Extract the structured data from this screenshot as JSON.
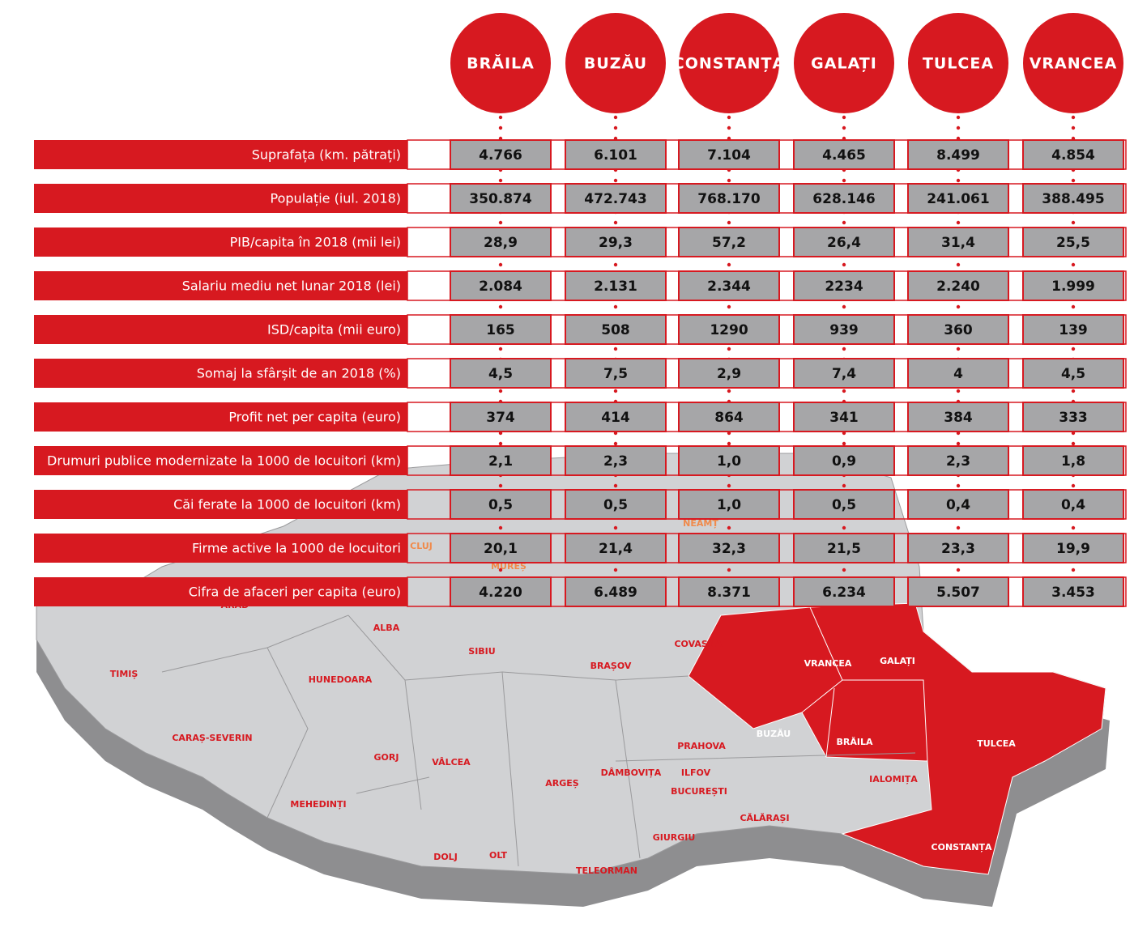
{
  "table": {
    "columns": [
      "BRĂILA",
      "BUZĂU",
      "CONSTANȚA",
      "GALAȚI",
      "TULCEA",
      "VRANCEA"
    ],
    "rows": [
      {
        "label": "Suprafața (km. pătrați)",
        "values": [
          "4.766",
          "6.101",
          "7.104",
          "4.465",
          "8.499",
          "4.854"
        ]
      },
      {
        "label": "Populație (iul. 2018)",
        "values": [
          "350.874",
          "472.743",
          "768.170",
          "628.146",
          "241.061",
          "388.495"
        ]
      },
      {
        "label": "PIB/capita în 2018 (mii lei)",
        "values": [
          "28,9",
          "29,3",
          "57,2",
          "26,4",
          "31,4",
          "25,5"
        ]
      },
      {
        "label": "Salariu mediu net lunar 2018 (lei)",
        "values": [
          "2.084",
          "2.131",
          "2.344",
          "2234",
          "2.240",
          "1.999"
        ]
      },
      {
        "label": "ISD/capita (mii euro)",
        "values": [
          "165",
          "508",
          "1290",
          "939",
          "360",
          "139"
        ]
      },
      {
        "label": "Somaj la sfârșit de an 2018 (%)",
        "values": [
          "4,5",
          "7,5",
          "2,9",
          "7,4",
          "4",
          "4,5"
        ]
      },
      {
        "label": "Profit net per capita (euro)",
        "values": [
          "374",
          "414",
          "864",
          "341",
          "384",
          "333"
        ]
      },
      {
        "label": "Drumuri publice modernizate la 1000 de locuitori (km)",
        "values": [
          "2,1",
          "2,3",
          "1,0",
          "0,9",
          "2,3",
          "1,8"
        ]
      },
      {
        "label": "Căi ferate la 1000 de locuitori (km)",
        "values": [
          "0,5",
          "0,5",
          "1,0",
          "0,5",
          "0,4",
          "0,4"
        ]
      },
      {
        "label": "Firme active la 1000 de locuitori",
        "values": [
          "20,1",
          "21,4",
          "32,3",
          "21,5",
          "23,3",
          "19,9"
        ]
      },
      {
        "label": "Cifra de afaceri per capita (euro)",
        "values": [
          "4.220",
          "6.489",
          "8.371",
          "6.234",
          "5.507",
          "3.453"
        ]
      }
    ]
  },
  "map": {
    "labels": [
      "CLUJ",
      "MUREȘ",
      "NEAMȚ",
      "ARAD",
      "ALBA",
      "SIBIU",
      "COVASNA",
      "TIMIȘ",
      "HUNEDOARA",
      "BRAȘOV",
      "VRANCEA",
      "GALAȚI",
      "CARAȘ-SEVERIN",
      "BUZĂU",
      "BRĂILA",
      "TULCEA",
      "PRAHOVA",
      "GORJ",
      "VÂLCEA",
      "ARGEȘ",
      "DÂMBOVIȚA",
      "ILFOV",
      "BUCUREȘTI",
      "IALOMIȚA",
      "MEHEDINȚI",
      "CĂLĂRAȘI",
      "GIURGIU",
      "CONSTANȚA",
      "DOLJ",
      "OLT",
      "TELEORMAN"
    ]
  }
}
